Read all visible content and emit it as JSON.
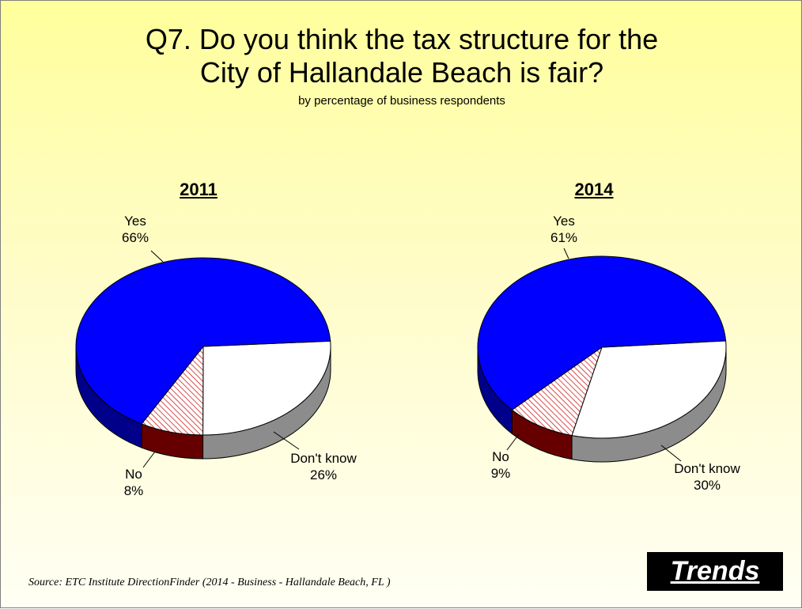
{
  "page": {
    "title_line1": "Q7. Do you think the tax structure for the",
    "title_line2": "City of Hallandale Beach is fair?",
    "subtitle": "by percentage of business respondents",
    "source": "Source:  ETC Institute DirectionFinder (2014 - Business - Hallandale Beach, FL )",
    "badge": "Trends"
  },
  "colors": {
    "yes": "#0000ff",
    "no": "#990000",
    "dont_know": "#ffffff"
  },
  "chart_data": [
    {
      "type": "pie",
      "title": "2011",
      "slices": [
        {
          "name": "Yes",
          "value": 66,
          "label": "66%"
        },
        {
          "name": "Don't know",
          "value": 26,
          "label": "26%"
        },
        {
          "name": "No",
          "value": 8,
          "label": "8%"
        }
      ]
    },
    {
      "type": "pie",
      "title": "2014",
      "slices": [
        {
          "name": "Yes",
          "value": 61,
          "label": "61%"
        },
        {
          "name": "Don't know",
          "value": 30,
          "label": "30%"
        },
        {
          "name": "No",
          "value": 9,
          "label": "9%"
        }
      ]
    }
  ]
}
